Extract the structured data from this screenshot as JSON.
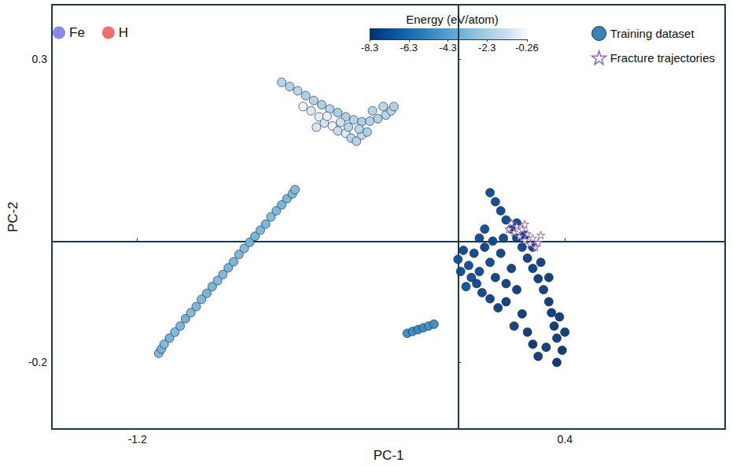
{
  "chart_data": {
    "type": "scatter",
    "x_label": "PC-1",
    "y_label": "PC-2",
    "xlim": [
      -1.52,
      1.0
    ],
    "ylim": [
      -0.31,
      0.39
    ],
    "xticks": [
      -1.2,
      0.4
    ],
    "yticks": [
      -0.2,
      0.3
    ],
    "grid": false,
    "legend": "top-right",
    "elements": [
      {
        "name": "Fe",
        "color": "#6b6be3"
      },
      {
        "name": "H",
        "color": "#ee4b4b"
      }
    ],
    "colorbar": {
      "label": "Energy (eV/atom)",
      "range": [
        -8.3,
        -0.26
      ],
      "ticks": [
        -8.3,
        -6.3,
        -4.3,
        -2.3,
        -0.26
      ]
    },
    "series": [
      {
        "name": "Training dataset",
        "marker": "circle",
        "color": "#2f7bb6",
        "values": [
          [
            -0.66,
            0.262
          ],
          [
            -0.63,
            0.255
          ],
          [
            -0.6,
            0.248
          ],
          [
            -0.57,
            0.24
          ],
          [
            -0.54,
            0.232
          ],
          [
            -0.51,
            0.225
          ],
          [
            -0.48,
            0.218
          ],
          [
            -0.45,
            0.212
          ],
          [
            -0.42,
            0.205
          ],
          [
            -0.39,
            0.2
          ],
          [
            -0.36,
            0.197
          ],
          [
            -0.33,
            0.198
          ],
          [
            -0.3,
            0.202
          ],
          [
            -0.27,
            0.208
          ],
          [
            -0.25,
            0.215
          ],
          [
            -0.24,
            0.222
          ],
          [
            -0.28,
            0.222
          ],
          [
            -0.32,
            0.215
          ],
          [
            -0.55,
            0.215
          ],
          [
            -0.52,
            0.205
          ],
          [
            -0.5,
            0.195
          ],
          [
            -0.47,
            0.19
          ],
          [
            -0.45,
            0.182
          ],
          [
            -0.42,
            0.178
          ],
          [
            -0.4,
            0.17
          ],
          [
            -0.38,
            0.165
          ],
          [
            -0.44,
            0.196
          ],
          [
            -0.49,
            0.206
          ],
          [
            -0.36,
            0.175
          ],
          [
            -0.34,
            0.18
          ],
          [
            -0.58,
            0.222
          ],
          [
            -0.53,
            0.188
          ],
          [
            -0.41,
            0.188
          ],
          [
            -0.37,
            0.185
          ],
          [
            -1.12,
            -0.185
          ],
          [
            -1.11,
            -0.178
          ],
          [
            -1.1,
            -0.17
          ],
          [
            -1.08,
            -0.16
          ],
          [
            -1.06,
            -0.15
          ],
          [
            -1.04,
            -0.14
          ],
          [
            -1.02,
            -0.128
          ],
          [
            -1.0,
            -0.118
          ],
          [
            -0.98,
            -0.108
          ],
          [
            -0.96,
            -0.096
          ],
          [
            -0.94,
            -0.086
          ],
          [
            -0.92,
            -0.075
          ],
          [
            -0.9,
            -0.065
          ],
          [
            -0.88,
            -0.055
          ],
          [
            -0.86,
            -0.044
          ],
          [
            -0.84,
            -0.034
          ],
          [
            -0.82,
            -0.022
          ],
          [
            -0.8,
            -0.012
          ],
          [
            -0.78,
            -0.002
          ],
          [
            -0.76,
            0.008
          ],
          [
            -0.74,
            0.018
          ],
          [
            -0.72,
            0.028
          ],
          [
            -0.7,
            0.04
          ],
          [
            -0.68,
            0.05
          ],
          [
            -0.66,
            0.06
          ],
          [
            -0.64,
            0.07
          ],
          [
            -0.62,
            0.078
          ],
          [
            -0.61,
            0.085
          ],
          [
            -0.19,
            -0.152
          ],
          [
            -0.17,
            -0.149
          ],
          [
            -0.15,
            -0.146
          ],
          [
            -0.13,
            -0.143
          ],
          [
            -0.11,
            -0.14
          ],
          [
            -0.09,
            -0.137
          ],
          [
            0.12,
            0.08
          ],
          [
            0.14,
            0.065
          ],
          [
            0.16,
            0.05
          ],
          [
            0.18,
            0.035
          ],
          [
            0.2,
            0.02
          ],
          [
            0.22,
            0.005
          ],
          [
            0.24,
            -0.01
          ],
          [
            0.26,
            -0.028
          ],
          [
            0.28,
            -0.045
          ],
          [
            0.3,
            -0.062
          ],
          [
            0.32,
            -0.08
          ],
          [
            0.34,
            -0.1
          ],
          [
            0.35,
            -0.118
          ],
          [
            0.36,
            -0.14
          ],
          [
            0.37,
            -0.16
          ],
          [
            0.22,
            0.03
          ],
          [
            0.25,
            0.01
          ],
          [
            0.28,
            -0.01
          ],
          [
            0.31,
            -0.035
          ],
          [
            0.34,
            -0.06
          ],
          [
            0.0,
            -0.03
          ],
          [
            0.02,
            -0.015
          ],
          [
            0.04,
            -0.04
          ],
          [
            0.06,
            -0.02
          ],
          [
            0.08,
            -0.05
          ],
          [
            0.1,
            -0.01
          ],
          [
            0.12,
            -0.035
          ],
          [
            0.14,
            -0.06
          ],
          [
            0.16,
            -0.02
          ],
          [
            0.18,
            -0.07
          ],
          [
            0.2,
            -0.045
          ],
          [
            0.1,
            0.02
          ],
          [
            0.08,
            0.005
          ],
          [
            0.05,
            -0.06
          ],
          [
            0.03,
            -0.075
          ],
          [
            0.09,
            -0.085
          ],
          [
            0.12,
            -0.095
          ],
          [
            0.15,
            -0.11
          ],
          [
            0.18,
            -0.1
          ],
          [
            0.22,
            -0.08
          ],
          [
            0.24,
            -0.12
          ],
          [
            0.21,
            -0.14
          ],
          [
            0.26,
            -0.15
          ],
          [
            0.28,
            -0.17
          ],
          [
            0.01,
            -0.05
          ],
          [
            0.07,
            -0.07
          ],
          [
            0.13,
            0.0
          ],
          [
            0.17,
            0.005
          ],
          [
            0.3,
            -0.19
          ],
          [
            0.33,
            -0.175
          ],
          [
            0.37,
            -0.2
          ],
          [
            0.39,
            -0.18
          ],
          [
            0.4,
            -0.15
          ],
          [
            0.38,
            -0.125
          ]
        ],
        "energy": [
          -2.0,
          -2.1,
          -1.9,
          -2.2,
          -2.0,
          -2.3,
          -2.1,
          -2.4,
          -2.2,
          -2.0,
          -2.3,
          -2.1,
          -2.2,
          -2.0,
          -1.9,
          -2.1,
          -1.8,
          -2.0,
          -1.0,
          -0.8,
          -1.2,
          -0.6,
          -1.5,
          -0.9,
          -1.8,
          -2.0,
          -1.3,
          -0.7,
          -1.6,
          -2.2,
          -0.5,
          -1.1,
          -2.1,
          -1.9,
          -3.4,
          -3.5,
          -3.3,
          -3.6,
          -3.4,
          -3.5,
          -3.7,
          -3.3,
          -3.5,
          -3.4,
          -3.6,
          -3.5,
          -3.3,
          -3.4,
          -3.6,
          -3.5,
          -3.4,
          -3.3,
          -3.5,
          -3.6,
          -3.4,
          -3.5,
          -3.3,
          -3.4,
          -3.6,
          -3.5,
          -3.4,
          -3.3,
          -5.2,
          -5.1,
          -5.3,
          -5.2,
          -5.0,
          -5.1,
          -7.4,
          -7.5,
          -7.6,
          -7.5,
          -7.7,
          -7.8,
          -7.6,
          -7.9,
          -7.8,
          -8.0,
          -7.9,
          -8.1,
          -8.0,
          -8.2,
          -8.1,
          -7.6,
          -7.7,
          -7.8,
          -7.9,
          -8.0,
          -7.3,
          -7.5,
          -7.4,
          -7.6,
          -7.5,
          -7.7,
          -7.6,
          -7.8,
          -7.7,
          -7.9,
          -7.8,
          -7.4,
          -7.5,
          -7.3,
          -7.2,
          -7.6,
          -7.7,
          -7.8,
          -7.9,
          -8.0,
          -8.1,
          -7.9,
          -8.2,
          -8.2,
          -7.4,
          -7.5,
          -7.6,
          -7.5,
          -8.1,
          -8.0,
          -8.3,
          -8.2,
          -8.1,
          -8.0
        ]
      },
      {
        "name": "Fracture trajectories",
        "marker": "star",
        "color": "#7b3fa0",
        "values": [
          [
            0.2,
            0.03
          ],
          [
            0.22,
            0.025
          ],
          [
            0.24,
            0.02
          ],
          [
            0.26,
            0.012
          ],
          [
            0.28,
            0.005
          ],
          [
            0.3,
            -0.002
          ],
          [
            0.21,
            0.015
          ],
          [
            0.23,
            0.008
          ],
          [
            0.25,
            0.002
          ],
          [
            0.27,
            -0.004
          ],
          [
            0.29,
            -0.01
          ],
          [
            0.31,
            0.01
          ],
          [
            0.19,
            0.02
          ],
          [
            0.25,
            0.028
          ]
        ]
      }
    ]
  }
}
